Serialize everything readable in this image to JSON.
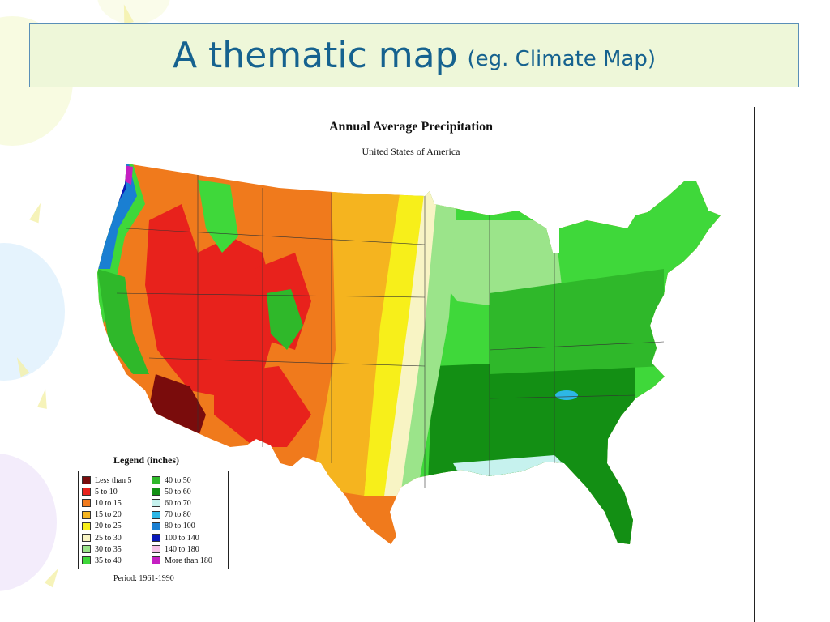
{
  "slide": {
    "title": "A thematic map",
    "title_note": "(eg. Climate Map)"
  },
  "map": {
    "title": "Annual Average Precipitation",
    "subtitle": "United States of America",
    "period": "Period: 1961-1990",
    "legend": {
      "title": "Legend (inches)",
      "items": [
        {
          "label": "Less than 5",
          "color": "#7a0c0c"
        },
        {
          "label": "5 to 10",
          "color": "#e8221c"
        },
        {
          "label": "10 to 15",
          "color": "#f07a1c"
        },
        {
          "label": "15 to 20",
          "color": "#f5b41f"
        },
        {
          "label": "20 to 25",
          "color": "#f7ef1a"
        },
        {
          "label": "25 to 30",
          "color": "#f8f4c4"
        },
        {
          "label": "30 to 35",
          "color": "#9be48a"
        },
        {
          "label": "35 to 40",
          "color": "#3fd83a"
        },
        {
          "label": "40 to 50",
          "color": "#2fb82a"
        },
        {
          "label": "50 to 60",
          "color": "#138f14"
        },
        {
          "label": "60 to 70",
          "color": "#c6f2ee"
        },
        {
          "label": "70 to 80",
          "color": "#2db7e6"
        },
        {
          "label": "80 to 100",
          "color": "#1a7fd2"
        },
        {
          "label": "100 to 140",
          "color": "#0b19b8"
        },
        {
          "label": "140 to 180",
          "color": "#f6c3e8"
        },
        {
          "label": "More than 180",
          "color": "#c51fc2"
        }
      ]
    }
  }
}
